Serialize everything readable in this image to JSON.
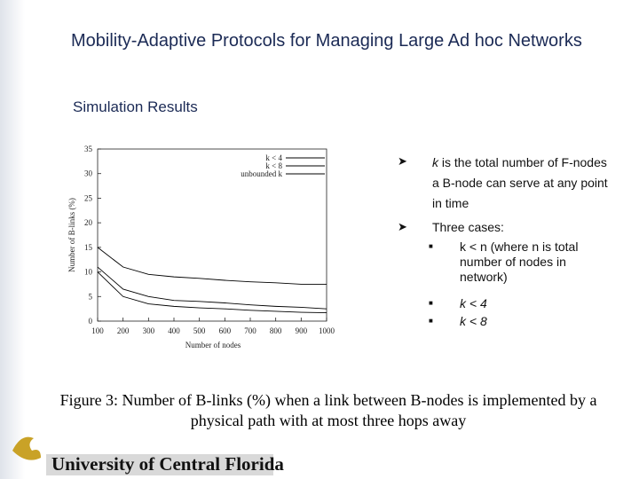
{
  "slide": {
    "title": "Mobility-Adaptive Protocols for Managing Large Ad hoc Networks",
    "subtitle": "Simulation Results",
    "bullets": [
      {
        "italic": "k",
        "text": " is the total number of F-nodes a B-node can serve at any point in time"
      },
      {
        "text": "Three cases:",
        "sub": [
          "k < n (where n is total number of nodes in network)",
          "k < 4",
          "k < 8"
        ]
      }
    ],
    "caption": "Figure 3: Number of B-links (%) when a link between B-nodes is implemented by a physical path with at most three hops away",
    "logo": "University of Central Florida"
  },
  "chart_data": {
    "type": "line",
    "ylabel": "Number of B-links (%)",
    "xlabel": "Number of nodes",
    "x": [
      100,
      200,
      300,
      400,
      500,
      600,
      700,
      800,
      900,
      1000
    ],
    "series": [
      {
        "name": "k < 4",
        "color": "#000000",
        "values": [
          10,
          5,
          3.5,
          3,
          2.7,
          2.5,
          2.2,
          2,
          1.8,
          1.7
        ]
      },
      {
        "name": "k < 8",
        "color": "#000000",
        "values": [
          11,
          6.5,
          5,
          4.2,
          4,
          3.7,
          3.3,
          3,
          2.8,
          2.5
        ]
      },
      {
        "name": "unbounded k",
        "color": "#000000",
        "values": [
          15,
          11,
          9.5,
          9,
          8.7,
          8.3,
          8,
          7.8,
          7.5,
          7.5
        ]
      }
    ],
    "xlim": [
      100,
      1000
    ],
    "xticks": [
      100,
      200,
      300,
      400,
      500,
      600,
      700,
      800,
      900,
      1000
    ],
    "ylim": [
      0,
      35
    ],
    "yticks": [
      0,
      5,
      10,
      15,
      20,
      25,
      30,
      35
    ],
    "legend": "top-right"
  }
}
